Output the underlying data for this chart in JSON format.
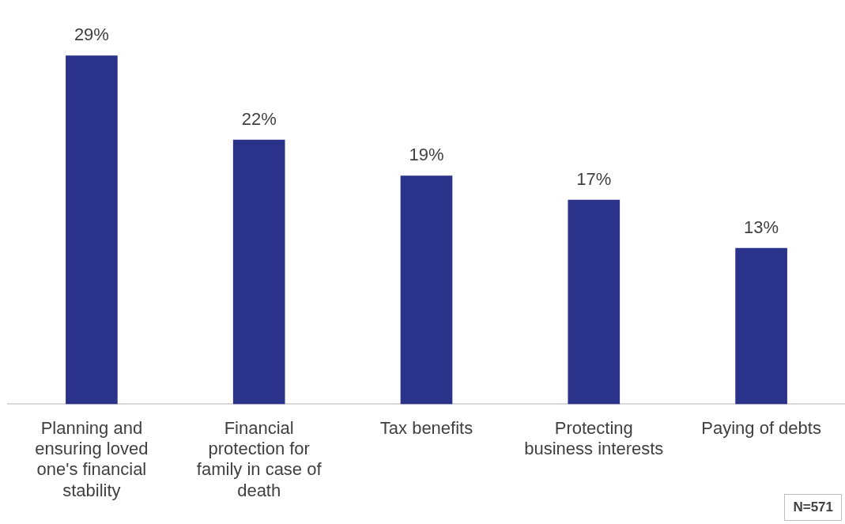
{
  "chart_data": {
    "type": "bar",
    "categories": [
      "Planning and ensuring loved one's financial stability",
      "Financial protection for family in case of death",
      "Tax benefits",
      "Protecting business interests",
      "Paying of debts"
    ],
    "values": [
      29,
      22,
      19,
      17,
      13
    ],
    "value_labels": [
      "29%",
      "22%",
      "19%",
      "17%",
      "13%"
    ],
    "color": "#2b3289",
    "grid": false,
    "legend": false,
    "annotations": [
      "N=571"
    ]
  }
}
